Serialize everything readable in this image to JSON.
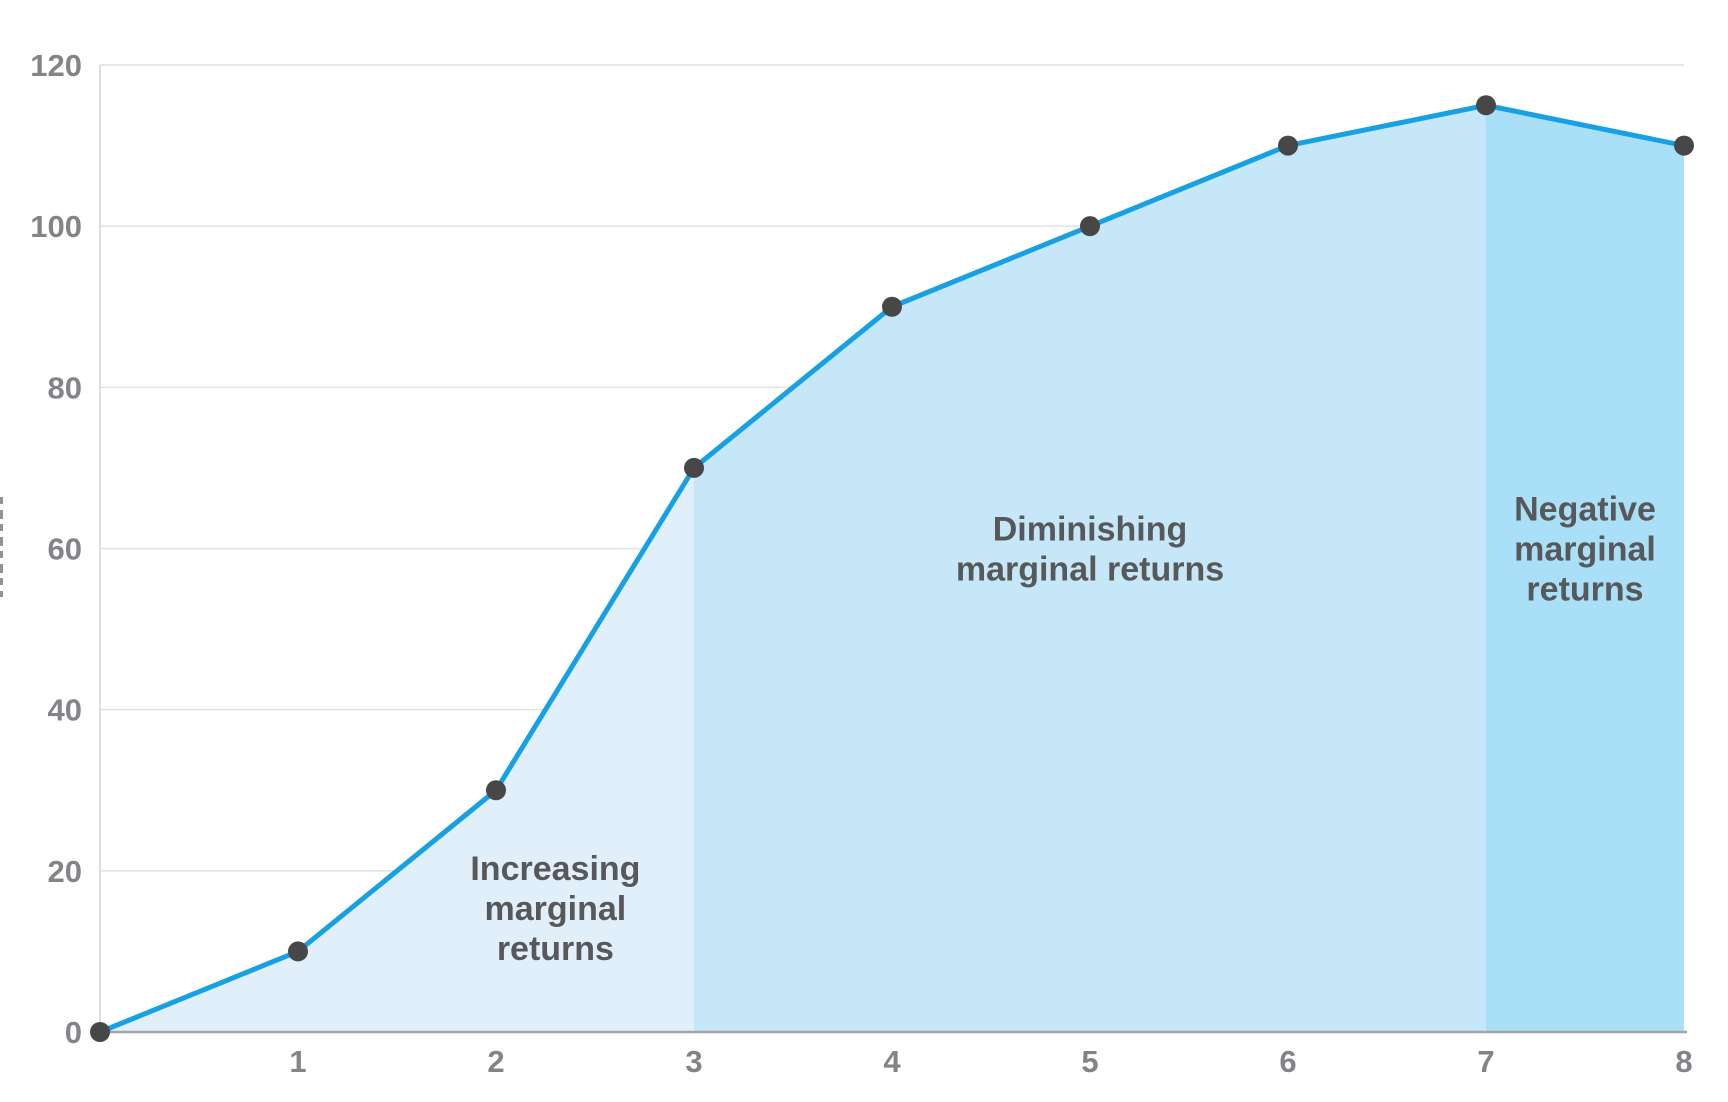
{
  "chart_data": {
    "type": "area",
    "title": "",
    "xlabel": "",
    "ylabel": "",
    "x": [
      0,
      1,
      2,
      3,
      4,
      5,
      6,
      7,
      8
    ],
    "values": [
      0,
      10,
      30,
      70,
      90,
      100,
      110,
      115,
      110
    ],
    "xlim": [
      0,
      8
    ],
    "ylim": [
      0,
      120
    ],
    "x_ticks": [
      1,
      2,
      3,
      4,
      5,
      6,
      7,
      8
    ],
    "y_ticks": [
      0,
      20,
      40,
      60,
      80,
      100,
      120
    ],
    "grid": true,
    "legend": "none",
    "line_color": "#17a1e4",
    "line_width": 5,
    "marker_color": "#474747",
    "marker_radius": 10,
    "grid_color": "#e0e1e3",
    "axis_color": "#a2a4a7",
    "y_axis_line_color": "#d1d3d4",
    "tick_label_color": "#828487",
    "region_label_color": "#57585a",
    "regions": [
      {
        "name": "increasing-marginal-returns",
        "label": "Increasing marginal returns",
        "label_lines": [
          "Increasing",
          "marginal",
          "returns"
        ],
        "x_start": 0,
        "x_end": 3,
        "fill": "#e1effa",
        "label_x": 2.3,
        "label_y": 15.4
      },
      {
        "name": "diminishing-marginal-returns",
        "label": "Diminishing marginal returns",
        "label_lines": [
          "Diminishing",
          "marginal returns"
        ],
        "x_start": 3,
        "x_end": 7,
        "fill": "#c5e7f8",
        "label_x": 5.0,
        "label_y": 60
      },
      {
        "name": "negative-marginal-returns",
        "label": "Negative marginal returns",
        "label_lines": [
          "Negative",
          "marginal",
          "returns"
        ],
        "x_start": 7,
        "x_end": 8,
        "fill": "#a9e0f8",
        "label_x": 7.5,
        "label_y": 60
      }
    ]
  }
}
